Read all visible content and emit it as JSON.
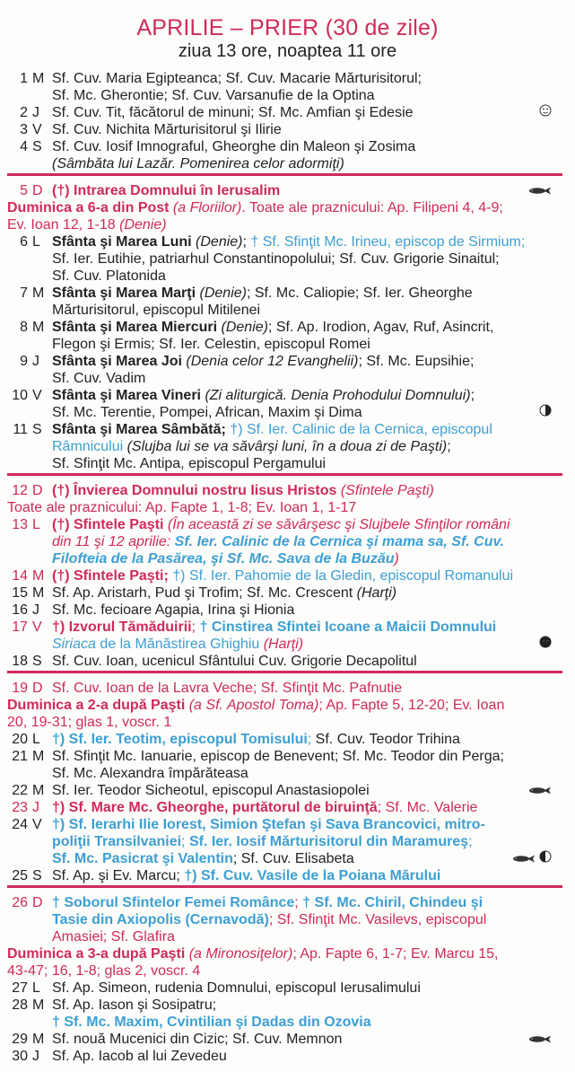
{
  "header": {
    "title": "APRILIE – PRIER (30 de zile)",
    "subtitle": "ziua 13 ore, noaptea 11 ore"
  },
  "colors": {
    "accent_red": "#cf2a5b",
    "saint_blue": "#3d9fd3",
    "text": "#222222"
  },
  "rows": [
    {
      "day": "1",
      "dow": "M",
      "lines": [
        [
          [
            "Sf. Cuv. Maria Egipteanca; Sf. Cuv. Macarie Mărturisitorul;",
            "n"
          ]
        ],
        [
          [
            "Sf. Mc. Gherontie; Sf. Cuv. Varsanufie de la Optina",
            "n"
          ]
        ]
      ]
    },
    {
      "day": "2",
      "dow": "J",
      "icons": [
        "moon-face-icon"
      ],
      "lines": [
        [
          [
            "Sf. Cuv. Tit, făcătorul de minuni; Sf. Mc. Amfian şi Edesie",
            "n"
          ]
        ]
      ]
    },
    {
      "day": "3",
      "dow": "V",
      "lines": [
        [
          [
            "Sf. Cuv. Nichita Mărturisitorul şi Ilirie",
            "n"
          ]
        ]
      ]
    },
    {
      "day": "4",
      "dow": "S",
      "lines": [
        [
          [
            "Sf. Cuv. Iosif Imnograful, Gheorghe din Maleon şi Zosima",
            "n"
          ]
        ],
        [
          [
            "(Sâmbăta lui Lazăr. Pomenirea celor adormiţi)",
            "i"
          ]
        ]
      ]
    },
    {
      "sep": true
    },
    {
      "day": "5",
      "dow": "D",
      "accent": true,
      "icons": [
        "fish-icon"
      ],
      "lines": [
        [
          [
            "(†) Intrarea Domnului în Ierusalim",
            "rb"
          ]
        ]
      ]
    },
    {
      "full": true,
      "lines": [
        [
          [
            "Duminica a 6-a din Post",
            "rb"
          ],
          [
            " (a Floriilor)",
            "ri"
          ],
          [
            ". Toate ale praznicului: Ap. Filipeni 4, 4-9;",
            "r"
          ]
        ],
        [
          [
            "Ev. Ioan 12, 1-18 ",
            "r"
          ],
          [
            "(Denie)",
            "ri"
          ]
        ]
      ]
    },
    {
      "day": "6",
      "dow": "L",
      "lines": [
        [
          [
            "Sfânta şi Marea Luni",
            "b"
          ],
          [
            " (Denie)",
            "i"
          ],
          [
            "; ",
            "n"
          ],
          [
            "† Sf. Sfinţit Mc. Irineu, episcop de Sirmium;",
            "c"
          ]
        ],
        [
          [
            "Sf. Ier. Eutihie, patriarhul Constantinopolului; Sf. Cuv. Grigorie Sinaitul;",
            "n"
          ]
        ],
        [
          [
            "Sf. Cuv. Platonida",
            "n"
          ]
        ]
      ]
    },
    {
      "day": "7",
      "dow": "M",
      "lines": [
        [
          [
            "Sfânta şi Marea Marţi",
            "b"
          ],
          [
            " (Denie)",
            "i"
          ],
          [
            "; Sf. Mc. Caliopie; Sf. Ier. Gheorghe",
            "n"
          ]
        ],
        [
          [
            "Mărturisitorul, episcopul Mitilenei",
            "n"
          ]
        ]
      ]
    },
    {
      "day": "8",
      "dow": "M",
      "lines": [
        [
          [
            "Sfânta şi Marea Miercuri",
            "b"
          ],
          [
            " (Denie)",
            "i"
          ],
          [
            "; Sf. Ap. Irodion, Agav, Ruf, Asincrit,",
            "n"
          ]
        ],
        [
          [
            "Flegon şi Ermis; Sf. Ier. Celestin, episcopul Romei",
            "n"
          ]
        ]
      ]
    },
    {
      "day": "9",
      "dow": "J",
      "lines": [
        [
          [
            "Sfânta şi Marea Joi",
            "b"
          ],
          [
            " (Denia celor 12 Evanghelii)",
            "i"
          ],
          [
            "; Sf. Mc. Eupsihie;",
            "n"
          ]
        ],
        [
          [
            "Sf. Cuv. Vadim",
            "n"
          ]
        ]
      ]
    },
    {
      "day": "10",
      "dow": "V",
      "icons": [
        "first-quarter-moon-icon"
      ],
      "lines": [
        [
          [
            "Sfânta şi Marea Vineri",
            "b"
          ],
          [
            " (Zi aliturgică. Denia Prohodului Domnului)",
            "i"
          ],
          [
            ";",
            "n"
          ]
        ],
        [
          [
            "Sf. Mc. Terentie, Pompei, African, Maxim şi Dima",
            "n"
          ]
        ]
      ]
    },
    {
      "day": "11",
      "dow": "S",
      "lines": [
        [
          [
            "Sfânta şi Marea Sâmbătă; ",
            "b"
          ],
          [
            "†) Sf. Ier. Calinic de la Cernica, episcopul",
            "c"
          ]
        ],
        [
          [
            "Râmnicului",
            "c"
          ],
          [
            " (Slujba lui se va săvârşi luni, în a doua zi de Paşti)",
            "i"
          ],
          [
            ";",
            "n"
          ]
        ],
        [
          [
            "Sf. Sfinţit Mc. Antipa, episcopul Pergamului",
            "n"
          ]
        ]
      ]
    },
    {
      "sep": true
    },
    {
      "day": "12",
      "dow": "D",
      "accent": true,
      "lines": [
        [
          [
            "(†) Învierea Domnului nostru Iisus Hristos",
            "rb"
          ],
          [
            " (Sfintele Paşti)",
            "ri"
          ]
        ]
      ]
    },
    {
      "full": true,
      "lines": [
        [
          [
            "Toate ale praznicului: Ap. Fapte 1, 1-8; Ev. Ioan 1, 1-17",
            "r"
          ]
        ]
      ]
    },
    {
      "day": "13",
      "dow": "L",
      "accent": true,
      "lines": [
        [
          [
            "(†) Sfintele Paşti",
            "rb"
          ],
          [
            " (În această zi se săvârşesc şi Slujbele Sfinţilor români",
            "ri"
          ]
        ],
        [
          [
            "din 11 şi 12 aprilie: ",
            "ri"
          ],
          [
            "Sf. Ier. Calinic de la Cernica şi mama sa, Sf. Cuv.",
            "cbi"
          ]
        ],
        [
          [
            "Filofteia de la Pasărea, şi Sf. Mc. Sava de la Buzău",
            "cbi"
          ],
          [
            ")",
            "ri"
          ]
        ]
      ]
    },
    {
      "day": "14",
      "dow": "M",
      "accent": true,
      "lines": [
        [
          [
            "(†) Sfintele Paşti; ",
            "rb"
          ],
          [
            "†) Sf. Ier. Pahomie de la Gledin, episcopul Romanului",
            "c"
          ]
        ]
      ]
    },
    {
      "day": "15",
      "dow": "M",
      "lines": [
        [
          [
            "Sf. Ap. Aristarh, Pud şi Trofim; Sf. Mc. Crescent ",
            "n"
          ],
          [
            "(Harţi)",
            "i"
          ]
        ]
      ]
    },
    {
      "day": "16",
      "dow": "J",
      "lines": [
        [
          [
            "Sf. Mc. fecioare Agapia, Irina şi Hionia",
            "n"
          ]
        ]
      ]
    },
    {
      "day": "17",
      "dow": "V",
      "accent": true,
      "icons": [
        "new-moon-icon"
      ],
      "lines": [
        [
          [
            "†) Izvorul Tămăduirii",
            "rb"
          ],
          [
            "; ",
            "r"
          ],
          [
            "† Cinstirea Sfintei Icoane a Maicii Domnului",
            "cb"
          ]
        ],
        [
          [
            "Siriaca",
            "ci"
          ],
          [
            " de la Mănăstirea Ghighiu ",
            "c"
          ],
          [
            "(Harţi)",
            "ri"
          ]
        ]
      ]
    },
    {
      "day": "18",
      "dow": "S",
      "lines": [
        [
          [
            "Sf. Cuv. Ioan, ucenicul Sfântului Cuv. Grigorie Decapolitul",
            "n"
          ]
        ]
      ]
    },
    {
      "sep": true
    },
    {
      "day": "19",
      "dow": "D",
      "accent": true,
      "lines": [
        [
          [
            "Sf. Cuv. Ioan de la Lavra Veche; Sf. Sfinţit Mc. Pafnutie",
            "r"
          ]
        ]
      ]
    },
    {
      "full": true,
      "lines": [
        [
          [
            "Duminica a 2-a după Paşti",
            "rb"
          ],
          [
            " (a Sf. Apostol Toma)",
            "ri"
          ],
          [
            "; Ap. Fapte 5, 12-20; Ev. Ioan",
            "r"
          ]
        ],
        [
          [
            "20, 19-31; glas 1, voscr. 1",
            "r"
          ]
        ]
      ]
    },
    {
      "day": "20",
      "dow": "L",
      "lines": [
        [
          [
            "†) Sf. Ier. Teotim, episcopul Tomisului",
            "cb"
          ],
          [
            ";",
            "c"
          ],
          [
            " Sf. Cuv. Teodor Trihina",
            "n"
          ]
        ]
      ]
    },
    {
      "day": "21",
      "dow": "M",
      "lines": [
        [
          [
            "Sf. Sfinţit Mc. Ianuarie, episcop de Benevent; Sf. Mc. Teodor din Perga;",
            "n"
          ]
        ],
        [
          [
            "Sf. Mc. Alexandra împărăteasa",
            "n"
          ]
        ]
      ]
    },
    {
      "day": "22",
      "dow": "M",
      "icons": [
        "fish-icon"
      ],
      "lines": [
        [
          [
            "Sf. Ier. Teodor Sicheotul, episcopul Anastasiopolei",
            "n"
          ]
        ]
      ]
    },
    {
      "day": "23",
      "dow": "J",
      "accent": true,
      "lines": [
        [
          [
            "†) Sf. Mare Mc. Gheorghe, purtătorul de biruinţă",
            "rb"
          ],
          [
            "; Sf. Mc. Valerie",
            "r"
          ]
        ]
      ]
    },
    {
      "day": "24",
      "dow": "V",
      "icons": [
        "fish-icon",
        "last-quarter-moon-icon"
      ],
      "lines": [
        [
          [
            "†) Sf. Ierarhi Ilie Iorest, Simion Ştefan şi Sava Brancovici, mitro-",
            "cb"
          ]
        ],
        [
          [
            "poliţii Transilvaniei",
            "cb"
          ],
          [
            "; ",
            "c"
          ],
          [
            "Sf. Ier. Iosif Mărturisitorul din Maramureş",
            "cb"
          ],
          [
            ";",
            "c"
          ]
        ],
        [
          [
            "Sf. Mc. Pasicrat şi Valentin",
            "cb"
          ],
          [
            "; Sf. Cuv. Elisabeta",
            "n"
          ]
        ]
      ]
    },
    {
      "day": "25",
      "dow": "S",
      "lines": [
        [
          [
            "Sf. Ap. şi Ev. Marcu; ",
            "n"
          ],
          [
            "†) Sf. Cuv. Vasile de la Poiana Mărului",
            "cb"
          ]
        ]
      ]
    },
    {
      "sep": true
    },
    {
      "day": "26",
      "dow": "D",
      "accent": true,
      "lines": [
        [
          [
            "† Soborul Sfintelor Femei Românce",
            "cb"
          ],
          [
            "; ",
            "r"
          ],
          [
            "† Sf. Mc. Chiril, Chindeu şi",
            "cb"
          ]
        ],
        [
          [
            "Tasie din Axiopolis (Cernavodă)",
            "cb"
          ],
          [
            "; Sf. Sfinţit Mc. Vasilevs, episcopul",
            "r"
          ]
        ],
        [
          [
            "Amasiei; Sf. Glafira",
            "r"
          ]
        ]
      ]
    },
    {
      "full": true,
      "lines": [
        [
          [
            "Duminica a 3-a după Paşti",
            "rb"
          ],
          [
            " (a Mironosiţelor)",
            "ri"
          ],
          [
            "; Ap. Fapte 6, 1-7; Ev. Marcu 15,",
            "r"
          ]
        ],
        [
          [
            "43-47; 16, 1-8; glas 2, voscr. 4",
            "r"
          ]
        ]
      ]
    },
    {
      "day": "27",
      "dow": "L",
      "lines": [
        [
          [
            "Sf. Ap. Simeon, rudenia Domnului, episcopul Ierusalimului",
            "n"
          ]
        ]
      ]
    },
    {
      "day": "28",
      "dow": "M",
      "lines": [
        [
          [
            "Sf. Ap. Iason şi Sosipatru;",
            "n"
          ]
        ],
        [
          [
            "† Sf. Mc. Maxim, Cvintilian şi Dadas din Ozovia",
            "cb"
          ]
        ]
      ]
    },
    {
      "day": "29",
      "dow": "M",
      "icons": [
        "fish-icon"
      ],
      "lines": [
        [
          [
            "Sf. nouă Mucenici din Cizic; Sf. Cuv. Memnon",
            "n"
          ]
        ]
      ]
    },
    {
      "day": "30",
      "dow": "J",
      "lines": [
        [
          [
            "Sf. Ap. Iacob al lui Zevedeu",
            "n"
          ]
        ]
      ]
    }
  ]
}
